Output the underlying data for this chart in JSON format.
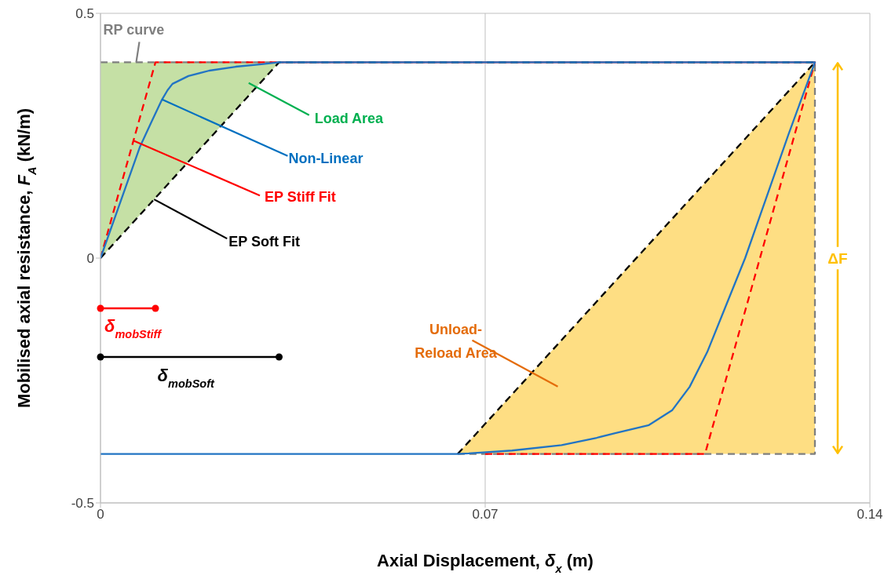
{
  "chart_data": {
    "type": "line",
    "xlabel": "Axial Displacement, δ$_{x}$ (m)",
    "ylabel": "Mobilised axial resistance, F$_{A}$ (kN/m)",
    "xlim": [
      0,
      0.14
    ],
    "xticks": [
      0,
      0.07,
      0.14
    ],
    "ylim": [
      -0.5,
      0.5
    ],
    "yticks": [
      -0.5,
      0,
      0.5
    ],
    "grid": true,
    "series": [
      {
        "name": "RP curve",
        "color": "#7f7f7f",
        "line_style": "dashed",
        "x": [
          0,
          0.13,
          0.13,
          0.065
        ],
        "values": [
          0.4,
          0.4,
          -0.4,
          -0.4
        ]
      },
      {
        "name": "EP Stiff Fit",
        "color": "#ff0000",
        "line_style": "dashed",
        "x": [
          0,
          0.01,
          0.13,
          0.11,
          0.07
        ],
        "values": [
          0,
          0.4,
          0.4,
          -0.4,
          -0.4
        ]
      },
      {
        "name": "EP Soft Fit",
        "color": "#000000",
        "line_style": "dashed",
        "x": [
          0,
          0.0325,
          0.13,
          0.065
        ],
        "values": [
          0,
          0.4,
          0.4,
          -0.4
        ]
      },
      {
        "name": "Non-Linear",
        "color": "#2274c4",
        "x": [
          0,
          0.0072,
          0.0093,
          0.0112,
          0.0122,
          0.0131,
          0.016,
          0.0198,
          0.0246,
          0.0293,
          0.0325,
          0.13,
          0.1252,
          0.1204,
          0.1173,
          0.1136,
          0.1104,
          0.1072,
          0.104,
          0.0998,
          0.0935,
          0.0903,
          0.0839,
          0.0749,
          0.067,
          0.065,
          0
        ],
        "values": [
          0,
          0.228,
          0.279,
          0.324,
          0.343,
          0.356,
          0.372,
          0.383,
          0.391,
          0.396,
          0.4,
          0.4,
          0.253,
          0.099,
          0,
          -0.103,
          -0.192,
          -0.263,
          -0.311,
          -0.341,
          -0.358,
          -0.367,
          -0.382,
          -0.393,
          -0.399,
          -0.4,
          -0.4
        ]
      },
      {
        "name": "Load Area",
        "x": [
          0,
          0.0325
        ],
        "values": [
          null,
          null
        ],
        "lower": [
          0,
          0.4
        ],
        "upper": [
          0.4,
          0.4
        ]
      },
      {
        "name": "Unload-Reload Area",
        "x": [
          0.065,
          0.13
        ],
        "values": [
          null,
          null
        ],
        "lower": [
          -0.4,
          -0.4
        ],
        "upper": [
          -0.4,
          0.4
        ]
      }
    ],
    "annotations": [
      "ΔF",
      "δ$_{mobStiff}$",
      "δ$_{mobSoft}$"
    ]
  }
}
